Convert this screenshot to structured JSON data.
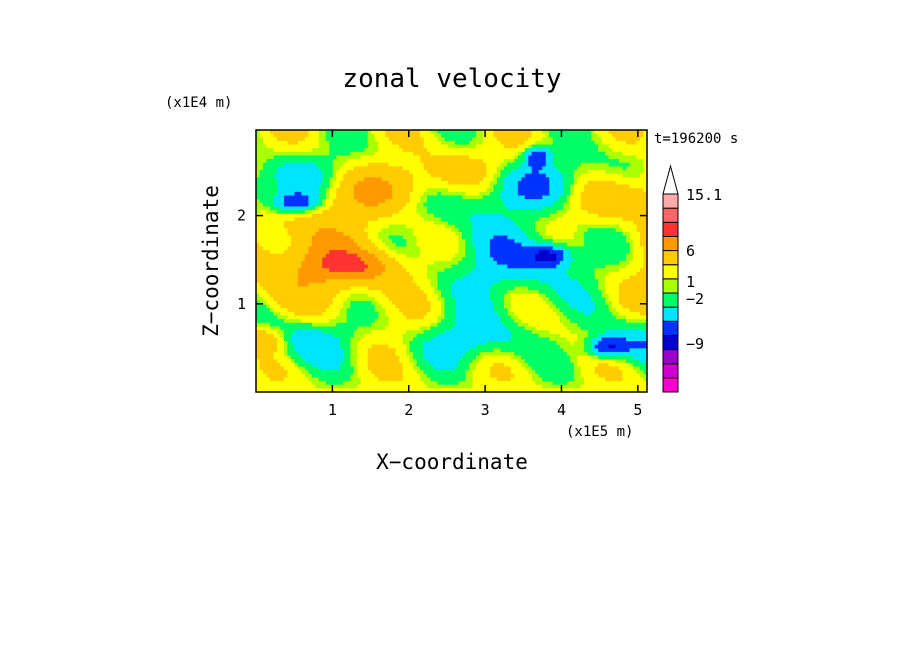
{
  "chart_data": {
    "type": "heatmap",
    "title": "zonal velocity",
    "xlabel": "X−coordinate",
    "ylabel": "Z−coordinate",
    "x_scale_label": "(x1E5 m)",
    "y_scale_label": "(x1E4 m)",
    "time_label": "t=196200 s",
    "xlim": [
      0,
      5.12
    ],
    "ylim": [
      0,
      2.97
    ],
    "x_ticks": [
      "1",
      "2",
      "3",
      "4",
      "5"
    ],
    "y_ticks": [
      "1",
      "2"
    ],
    "x_tick_values": [
      1,
      2,
      3,
      4,
      5
    ],
    "y_tick_values": [
      1,
      2
    ],
    "colorbar": {
      "labels": [
        "15.1",
        "6",
        "1",
        "−2",
        "−9"
      ],
      "bins": [
        {
          "color": "#ff00cc",
          "lo": -15,
          "hi": -12
        },
        {
          "color": "#cc00cc",
          "lo": -12,
          "hi": -9
        },
        {
          "color": "#9900cc",
          "lo": -9,
          "hi": -6
        },
        {
          "color": "#0000cc",
          "lo": -6,
          "hi": -4
        },
        {
          "color": "#0033ff",
          "lo": -4,
          "hi": -2
        },
        {
          "color": "#00e5ff",
          "lo": -2,
          "hi": -0.5
        },
        {
          "color": "#00ff66",
          "lo": -0.5,
          "hi": 0.5
        },
        {
          "color": "#aaff00",
          "lo": 0.5,
          "hi": 1
        },
        {
          "color": "#ffff00",
          "lo": 1,
          "hi": 2
        },
        {
          "color": "#ffcc00",
          "lo": 2,
          "hi": 4
        },
        {
          "color": "#ff9900",
          "lo": 4,
          "hi": 6
        },
        {
          "color": "#ff3333",
          "lo": 6,
          "hi": 9
        },
        {
          "color": "#ff6666",
          "lo": 9,
          "hi": 12
        },
        {
          "color": "#ffaaaa",
          "lo": 12,
          "hi": 15.1
        }
      ],
      "over_color": "#ffffff"
    }
  }
}
